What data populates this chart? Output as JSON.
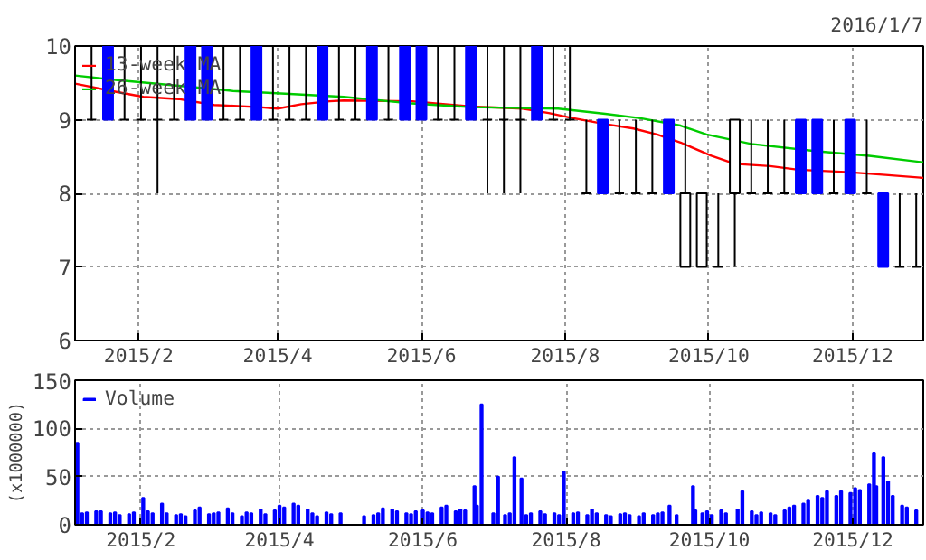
{
  "chart_data": [
    {
      "type": "candlestick",
      "annotations": [
        "2016/1/7"
      ],
      "x": [
        "2015-01-12",
        "2015-01-19",
        "2015-01-26",
        "2015-02-02",
        "2015-02-09",
        "2015-02-16",
        "2015-02-23",
        "2015-03-02",
        "2015-03-09",
        "2015-03-16",
        "2015-03-23",
        "2015-03-30",
        "2015-04-06",
        "2015-04-13",
        "2015-04-20",
        "2015-04-27",
        "2015-05-04",
        "2015-05-11",
        "2015-05-18",
        "2015-05-25",
        "2015-06-01",
        "2015-06-08",
        "2015-06-15",
        "2015-06-22",
        "2015-06-29",
        "2015-07-06",
        "2015-07-13",
        "2015-07-20",
        "2015-07-27",
        "2015-08-03",
        "2015-08-10",
        "2015-08-17",
        "2015-08-24",
        "2015-08-31",
        "2015-09-07",
        "2015-09-14",
        "2015-09-21",
        "2015-09-28",
        "2015-10-05",
        "2015-10-12",
        "2015-10-19",
        "2015-10-26",
        "2015-11-02",
        "2015-11-09",
        "2015-11-16",
        "2015-11-23",
        "2015-11-30",
        "2015-12-07",
        "2015-12-14",
        "2015-12-21",
        "2015-12-28"
      ],
      "ohlc": [
        [
          9,
          10,
          9,
          9
        ],
        [
          10,
          10,
          9,
          9
        ],
        [
          9,
          10,
          9,
          9
        ],
        [
          9,
          10,
          9,
          9
        ],
        [
          9,
          10,
          8,
          9
        ],
        [
          9,
          10,
          9,
          9
        ],
        [
          10,
          10,
          9,
          9
        ],
        [
          10,
          10,
          9,
          9
        ],
        [
          9,
          10,
          9,
          9
        ],
        [
          9,
          10,
          9,
          9
        ],
        [
          10,
          10,
          9,
          9
        ],
        [
          9,
          10,
          9,
          9
        ],
        [
          9,
          10,
          9,
          9
        ],
        [
          9,
          10,
          9,
          9
        ],
        [
          10,
          10,
          9,
          9
        ],
        [
          9,
          10,
          9,
          9
        ],
        [
          9,
          10,
          9,
          9
        ],
        [
          10,
          10,
          9,
          9
        ],
        [
          9,
          10,
          9,
          9
        ],
        [
          10,
          10,
          9,
          9
        ],
        [
          10,
          10,
          9,
          9
        ],
        [
          9,
          10,
          9,
          9
        ],
        [
          9,
          10,
          9,
          9
        ],
        [
          10,
          10,
          9,
          9
        ],
        [
          9,
          10,
          8,
          9
        ],
        [
          9,
          10,
          8,
          9
        ],
        [
          9,
          10,
          8,
          9
        ],
        [
          10,
          10,
          9,
          9
        ],
        [
          9,
          10,
          9,
          9
        ],
        [
          9,
          10,
          9,
          9
        ],
        [
          8,
          9,
          8,
          8
        ],
        [
          9,
          9,
          8,
          8
        ],
        [
          8,
          9,
          8,
          8
        ],
        [
          8,
          9,
          8,
          8
        ],
        [
          8,
          9,
          8,
          8
        ],
        [
          9,
          9,
          8,
          8
        ],
        [
          7,
          9,
          7,
          8
        ],
        [
          7,
          8,
          7,
          8
        ],
        [
          7,
          8,
          7,
          7
        ],
        [
          8,
          9,
          7,
          9
        ],
        [
          8,
          9,
          8,
          8
        ],
        [
          8,
          9,
          8,
          8
        ],
        [
          8,
          9,
          8,
          8
        ],
        [
          9,
          9,
          8,
          8
        ],
        [
          9,
          9,
          8,
          8
        ],
        [
          8,
          9,
          8,
          8
        ],
        [
          9,
          9,
          8,
          8
        ],
        [
          8,
          9,
          8,
          8
        ],
        [
          8,
          8,
          7,
          7
        ],
        [
          7,
          8,
          7,
          7
        ],
        [
          7,
          8,
          7,
          7
        ]
      ],
      "colors": [
        "#000000",
        "#0000ff",
        "#000000",
        "#000000",
        "#000000",
        "#000000",
        "#0000ff",
        "#0000ff",
        "#000000",
        "#000000",
        "#0000ff",
        "#000000",
        "#000000",
        "#000000",
        "#0000ff",
        "#000000",
        "#000000",
        "#0000ff",
        "#000000",
        "#0000ff",
        "#0000ff",
        "#000000",
        "#000000",
        "#0000ff",
        "#000000",
        "#000000",
        "#000000",
        "#0000ff",
        "#000000",
        "#000000",
        "#000000",
        "#0000ff",
        "#000000",
        "#000000",
        "#000000",
        "#0000ff",
        "#ffffff",
        "#ffffff",
        "#000000",
        "#ffffff",
        "#000000",
        "#000000",
        "#000000",
        "#0000ff",
        "#0000ff",
        "#000000",
        "#0000ff",
        "#000000",
        "#0000ff",
        "#000000",
        "#000000"
      ],
      "series": [
        {
          "name": "13-week MA",
          "type": "line",
          "color": "#ff0000",
          "x": [
            "2015-01-05",
            "2015-01-22",
            "2015-02-03",
            "2015-02-18",
            "2015-03-05",
            "2015-03-24",
            "2015-04-01",
            "2015-04-11",
            "2015-04-23",
            "2015-04-29",
            "2015-05-28",
            "2015-06-22",
            "2015-07-14",
            "2015-07-25",
            "2015-08-03",
            "2015-08-18",
            "2015-08-30",
            "2015-09-09",
            "2015-09-19",
            "2015-10-02",
            "2015-10-12",
            "2015-10-27",
            "2015-11-08",
            "2015-11-28",
            "2015-12-15",
            "2015-12-31"
          ],
          "values": [
            9.49,
            9.38,
            9.31,
            9.28,
            9.2,
            9.17,
            9.15,
            9.21,
            9.25,
            9.26,
            9.25,
            9.18,
            9.15,
            9.09,
            9.03,
            8.94,
            8.88,
            8.8,
            8.69,
            8.51,
            8.4,
            8.37,
            8.32,
            8.29,
            8.25,
            8.21
          ]
        },
        {
          "name": "26-week MA",
          "type": "line",
          "color": "#00cc00",
          "x": [
            "2015-01-05",
            "2015-01-22",
            "2015-02-15",
            "2015-03-13",
            "2015-04-06",
            "2015-04-29",
            "2015-05-28",
            "2015-06-22",
            "2015-07-29",
            "2015-08-18",
            "2015-09-02",
            "2015-09-19",
            "2015-09-30",
            "2015-10-19",
            "2015-11-16",
            "2015-12-08",
            "2015-12-31"
          ],
          "values": [
            9.6,
            9.54,
            9.47,
            9.39,
            9.35,
            9.31,
            9.22,
            9.17,
            9.15,
            9.08,
            9.02,
            8.92,
            8.8,
            8.67,
            8.57,
            8.51,
            8.42
          ]
        }
      ],
      "xlim": [
        "2015-01-05",
        "2015-12-31"
      ],
      "xticks": [
        {
          "value": "2015-02-01",
          "label": "2015/2"
        },
        {
          "value": "2015-04-01",
          "label": "2015/4"
        },
        {
          "value": "2015-06-01",
          "label": "2015/6"
        },
        {
          "value": "2015-08-01",
          "label": "2015/8"
        },
        {
          "value": "2015-10-01",
          "label": "2015/10"
        },
        {
          "value": "2015-12-01",
          "label": "2015/12"
        }
      ],
      "ylim": [
        6,
        10
      ],
      "yticks": [
        6,
        7,
        8,
        9,
        10
      ],
      "grid": true,
      "legend": "top left"
    },
    {
      "type": "bar",
      "ylabel": "(x1000000)",
      "series": [
        {
          "name": "Volume",
          "color": "#0000ff",
          "x": [
            "2015-01-05",
            "2015-01-07",
            "2015-01-09",
            "2015-01-13",
            "2015-01-15",
            "2015-01-19",
            "2015-01-21",
            "2015-01-23",
            "2015-01-27",
            "2015-01-29",
            "2015-02-02",
            "2015-02-04",
            "2015-02-06",
            "2015-02-10",
            "2015-02-12",
            "2015-02-16",
            "2015-02-18",
            "2015-02-20",
            "2015-02-24",
            "2015-02-26",
            "2015-03-02",
            "2015-03-04",
            "2015-03-06",
            "2015-03-10",
            "2015-03-12",
            "2015-03-16",
            "2015-03-18",
            "2015-03-20",
            "2015-03-24",
            "2015-03-26",
            "2015-03-30",
            "2015-04-01",
            "2015-04-03",
            "2015-04-07",
            "2015-04-09",
            "2015-04-13",
            "2015-04-15",
            "2015-04-17",
            "2015-04-21",
            "2015-04-23",
            "2015-04-27",
            "2015-05-07",
            "2015-05-11",
            "2015-05-13",
            "2015-05-15",
            "2015-05-19",
            "2015-05-21",
            "2015-05-25",
            "2015-05-27",
            "2015-05-29",
            "2015-06-01",
            "2015-06-03",
            "2015-06-05",
            "2015-06-09",
            "2015-06-11",
            "2015-06-15",
            "2015-06-17",
            "2015-06-19",
            "2015-06-23",
            "2015-06-24",
            "2015-06-26",
            "2015-07-01",
            "2015-07-03",
            "2015-07-06",
            "2015-07-08",
            "2015-07-10",
            "2015-07-13",
            "2015-07-15",
            "2015-07-17",
            "2015-07-21",
            "2015-07-23",
            "2015-07-27",
            "2015-07-29",
            "2015-07-31",
            "2015-08-04",
            "2015-08-06",
            "2015-08-10",
            "2015-08-12",
            "2015-08-14",
            "2015-08-18",
            "2015-08-20",
            "2015-08-24",
            "2015-08-26",
            "2015-08-28",
            "2015-09-01",
            "2015-09-03",
            "2015-09-07",
            "2015-09-09",
            "2015-09-11",
            "2015-09-14",
            "2015-09-17",
            "2015-09-24",
            "2015-09-25",
            "2015-09-28",
            "2015-09-30",
            "2015-10-02",
            "2015-10-06",
            "2015-10-08",
            "2015-10-13",
            "2015-10-15",
            "2015-10-19",
            "2015-10-21",
            "2015-10-23",
            "2015-10-27",
            "2015-10-29",
            "2015-11-02",
            "2015-11-04",
            "2015-11-06",
            "2015-11-10",
            "2015-11-12",
            "2015-11-16",
            "2015-11-18",
            "2015-11-20",
            "2015-11-24",
            "2015-11-26",
            "2015-11-30",
            "2015-12-02",
            "2015-12-04",
            "2015-12-08",
            "2015-12-10",
            "2015-12-11",
            "2015-12-14",
            "2015-12-16",
            "2015-12-18",
            "2015-12-22",
            "2015-12-24",
            "2015-12-28"
          ],
          "values": [
            85,
            12,
            13,
            14,
            14,
            12,
            13,
            10,
            11,
            13,
            28,
            14,
            12,
            22,
            12,
            10,
            11,
            9,
            15,
            18,
            11,
            12,
            13,
            17,
            12,
            9,
            13,
            12,
            16,
            11,
            15,
            20,
            18,
            22,
            20,
            16,
            12,
            9,
            13,
            11,
            12,
            9,
            10,
            12,
            17,
            16,
            14,
            12,
            11,
            14,
            15,
            13,
            12,
            18,
            20,
            14,
            16,
            15,
            40,
            20,
            125,
            12,
            50,
            10,
            12,
            70,
            48,
            10,
            12,
            14,
            11,
            12,
            10,
            55,
            12,
            13,
            10,
            16,
            12,
            10,
            9,
            11,
            12,
            10,
            9,
            12,
            10,
            12,
            13,
            20,
            10,
            40,
            15,
            12,
            14,
            10,
            15,
            12,
            16,
            35,
            14,
            10,
            13,
            12,
            10,
            15,
            18,
            20,
            22,
            25,
            30,
            28,
            35,
            30,
            35,
            33,
            38,
            36,
            42,
            75,
            40,
            70,
            45,
            30,
            20,
            18,
            15
          ]
        }
      ],
      "xlim": [
        "2015-01-04",
        "2015-12-31"
      ],
      "xticks": [
        {
          "value": "2015-02-01",
          "label": "2015/2"
        },
        {
          "value": "2015-04-01",
          "label": "2015/4"
        },
        {
          "value": "2015-06-01",
          "label": "2015/6"
        },
        {
          "value": "2015-08-01",
          "label": "2015/8"
        },
        {
          "value": "2015-10-01",
          "label": "2015/10"
        },
        {
          "value": "2015-12-01",
          "label": "2015/12"
        }
      ],
      "ylim": [
        0,
        150
      ],
      "yticks": [
        0,
        50,
        100,
        150
      ],
      "grid": true,
      "legend": "top left"
    }
  ]
}
